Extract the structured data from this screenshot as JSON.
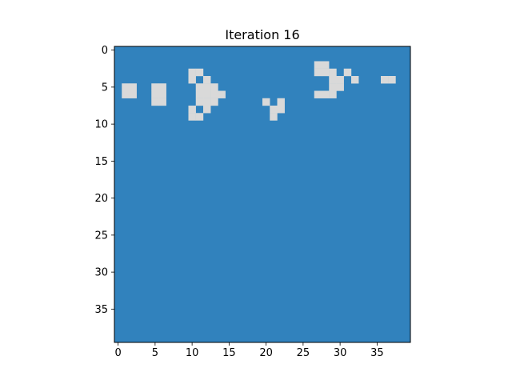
{
  "chart_data": {
    "type": "heatmap",
    "title": "Iteration 16",
    "xlabel": "",
    "ylabel": "",
    "grid_rows": 40,
    "grid_cols": 40,
    "xlim": [
      -0.5,
      39.5
    ],
    "ylim": [
      39.5,
      -0.5
    ],
    "x_ticks": [
      0,
      5,
      10,
      15,
      20,
      25,
      30,
      35
    ],
    "x_tick_labels": [
      "0",
      "5",
      "10",
      "15",
      "20",
      "25",
      "30",
      "35"
    ],
    "y_ticks": [
      0,
      5,
      10,
      15,
      20,
      25,
      30,
      35
    ],
    "y_tick_labels": [
      "0",
      "5",
      "10",
      "15",
      "20",
      "25",
      "30",
      "35"
    ],
    "grid": false,
    "colors": {
      "dead": "#3182bd",
      "alive": "#d9d9d9"
    },
    "live_cells": [
      [
        2,
        27
      ],
      [
        2,
        28
      ],
      [
        3,
        29
      ],
      [
        4,
        29
      ],
      [
        5,
        29
      ],
      [
        6,
        29
      ],
      [
        3,
        27
      ],
      [
        3,
        28
      ],
      [
        3,
        31
      ],
      [
        4,
        36
      ],
      [
        4,
        37
      ],
      [
        4,
        30
      ],
      [
        4,
        32
      ],
      [
        3,
        10
      ],
      [
        3,
        11
      ],
      [
        4,
        10
      ],
      [
        4,
        12
      ],
      [
        5,
        1
      ],
      [
        5,
        2
      ],
      [
        5,
        5
      ],
      [
        5,
        6
      ],
      [
        5,
        11
      ],
      [
        5,
        12
      ],
      [
        5,
        13
      ],
      [
        5,
        30
      ],
      [
        6,
        1
      ],
      [
        6,
        2
      ],
      [
        6,
        5
      ],
      [
        6,
        6
      ],
      [
        6,
        11
      ],
      [
        6,
        12
      ],
      [
        6,
        13
      ],
      [
        6,
        14
      ],
      [
        6,
        27
      ],
      [
        6,
        28
      ],
      [
        7,
        5
      ],
      [
        7,
        6
      ],
      [
        7,
        11
      ],
      [
        7,
        12
      ],
      [
        7,
        13
      ],
      [
        7,
        20
      ],
      [
        7,
        22
      ],
      [
        8,
        10
      ],
      [
        8,
        12
      ],
      [
        8,
        21
      ],
      [
        8,
        22
      ],
      [
        9,
        10
      ],
      [
        9,
        11
      ],
      [
        9,
        21
      ]
    ]
  }
}
